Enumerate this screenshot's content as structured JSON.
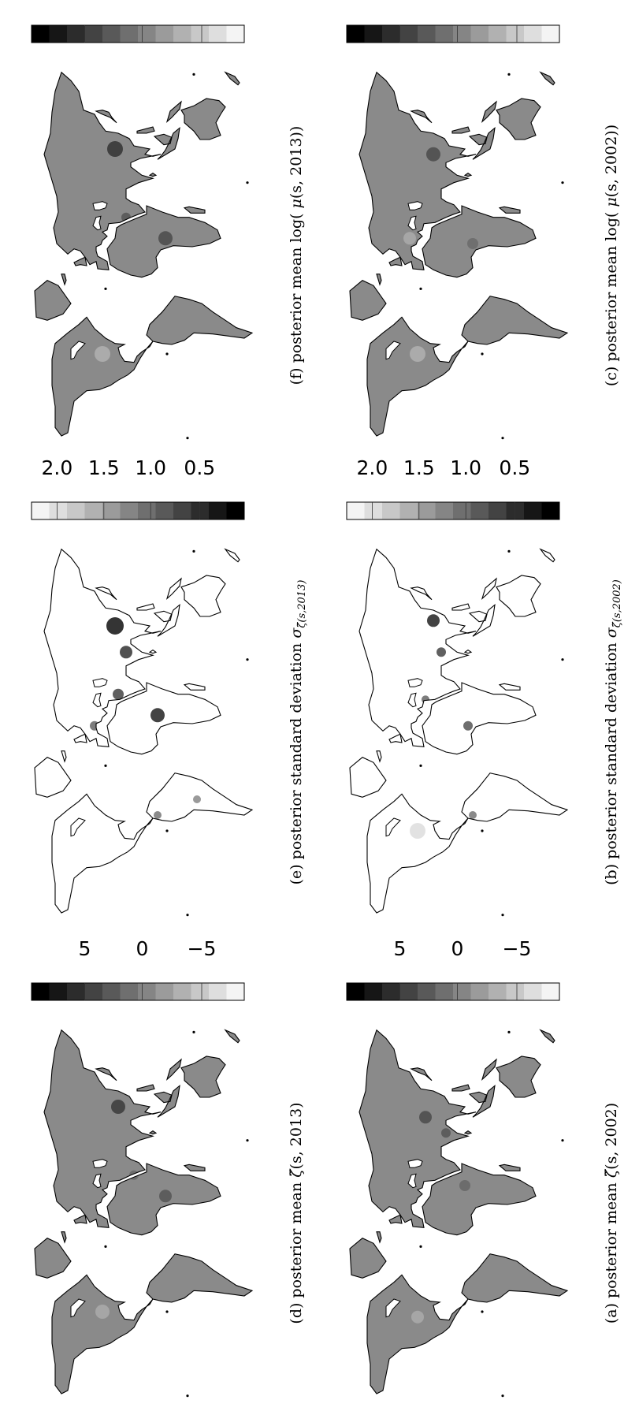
{
  "panels": [
    {
      "id": "a",
      "caption": {
        "prefix": "(a) posterior mean",
        "symbol": "ζ̃",
        "args": "(s, 2002)"
      },
      "colorbar": {
        "orientation": "dark-to-light",
        "ticks": [
          "5",
          "0",
          "−5"
        ]
      },
      "map": {
        "land": "#8a8a8a",
        "hotspots": [
          {
            "lon": 95,
            "lat": 35,
            "r": 8,
            "shade": "#4a4a4a"
          },
          {
            "lon": 30,
            "lat": 10,
            "r": 7,
            "shade": "#666"
          },
          {
            "lon": 80,
            "lat": 22,
            "r": 6,
            "shade": "#555"
          },
          {
            "lon": -95,
            "lat": 40,
            "r": 8,
            "shade": "#aaa"
          }
        ]
      }
    },
    {
      "id": "b",
      "caption": {
        "prefix": "(b) posterior standard deviation",
        "symbol": "σ",
        "args": "ζ̃(s,2002)"
      },
      "colorbar": {
        "orientation": "light-to-dark",
        "ticks": [
          "2.0",
          "1.5",
          "1.0",
          "0.5"
        ]
      },
      "map": {
        "land": "#ffffff",
        "hotspots": [
          {
            "lon": 110,
            "lat": 30,
            "r": 8,
            "shade": "#222"
          },
          {
            "lon": 80,
            "lat": 25,
            "r": 6,
            "shade": "#444"
          },
          {
            "lon": 10,
            "lat": 8,
            "r": 6,
            "shade": "#555"
          },
          {
            "lon": 35,
            "lat": 35,
            "r": 5,
            "shade": "#666"
          },
          {
            "lon": -75,
            "lat": 5,
            "r": 5,
            "shade": "#777"
          },
          {
            "lon": -90,
            "lat": 40,
            "r": 10,
            "shade": "#ddd"
          }
        ]
      }
    },
    {
      "id": "c",
      "caption": {
        "prefix": "(c) posterior mean log(",
        "symbol": "μ",
        "args": "(s, 2002))"
      },
      "colorbar": {
        "orientation": "dark-to-light",
        "ticks": [
          "5",
          "0",
          "−5"
        ]
      },
      "map": {
        "land": "#8a8a8a",
        "hotspots": [
          {
            "lon": 100,
            "lat": 30,
            "r": 9,
            "shade": "#4a4a4a"
          },
          {
            "lon": 15,
            "lat": 5,
            "r": 7,
            "shade": "#6a6a6a"
          },
          {
            "lon": -90,
            "lat": 40,
            "r": 10,
            "shade": "#b0b0b0"
          },
          {
            "lon": 20,
            "lat": 45,
            "r": 8,
            "shade": "#aaa"
          }
        ]
      }
    },
    {
      "id": "d",
      "caption": {
        "prefix": "(d) posterior mean",
        "symbol": "ζ̃",
        "args": "(s, 2013)"
      },
      "colorbar": {
        "orientation": "dark-to-light",
        "ticks": [
          "5",
          "0",
          "−5"
        ]
      },
      "map": {
        "land": "#8a8a8a",
        "hotspots": [
          {
            "lon": 105,
            "lat": 30,
            "r": 9,
            "shade": "#3a3a3a"
          },
          {
            "lon": 20,
            "lat": 0,
            "r": 8,
            "shade": "#555"
          },
          {
            "lon": 40,
            "lat": 20,
            "r": 6,
            "shade": "#666"
          },
          {
            "lon": -90,
            "lat": 40,
            "r": 9,
            "shade": "#aaa"
          }
        ]
      }
    },
    {
      "id": "e",
      "caption": {
        "prefix": "(e) posterior standard deviation",
        "symbol": "σ",
        "args": "ζ̃(s,2013)"
      },
      "colorbar": {
        "orientation": "light-to-dark",
        "ticks": [
          "2.0",
          "1.5",
          "1.0",
          "0.5"
        ]
      },
      "map": {
        "land": "#ffffff",
        "hotspots": [
          {
            "lon": 105,
            "lat": 32,
            "r": 11,
            "shade": "#111"
          },
          {
            "lon": 80,
            "lat": 25,
            "r": 8,
            "shade": "#333"
          },
          {
            "lon": 20,
            "lat": 5,
            "r": 9,
            "shade": "#222"
          },
          {
            "lon": 40,
            "lat": 30,
            "r": 7,
            "shade": "#444"
          },
          {
            "lon": 10,
            "lat": 45,
            "r": 6,
            "shade": "#666"
          },
          {
            "lon": -75,
            "lat": 5,
            "r": 5,
            "shade": "#777"
          },
          {
            "lon": -60,
            "lat": -20,
            "r": 5,
            "shade": "#888"
          }
        ]
      }
    },
    {
      "id": "f",
      "caption": {
        "prefix": "(f) posterior mean log(",
        "symbol": "μ",
        "args": "(s, 2013))"
      },
      "colorbar": {
        "orientation": "dark-to-light",
        "ticks": [
          "5",
          "0",
          "−5"
        ]
      },
      "map": {
        "land": "#8a8a8a",
        "hotspots": [
          {
            "lon": 105,
            "lat": 32,
            "r": 10,
            "shade": "#333"
          },
          {
            "lon": 20,
            "lat": 0,
            "r": 9,
            "shade": "#4a4a4a"
          },
          {
            "lon": 40,
            "lat": 25,
            "r": 6,
            "shade": "#555"
          },
          {
            "lon": -90,
            "lat": 40,
            "r": 10,
            "shade": "#b0b0b0"
          }
        ]
      }
    }
  ]
}
